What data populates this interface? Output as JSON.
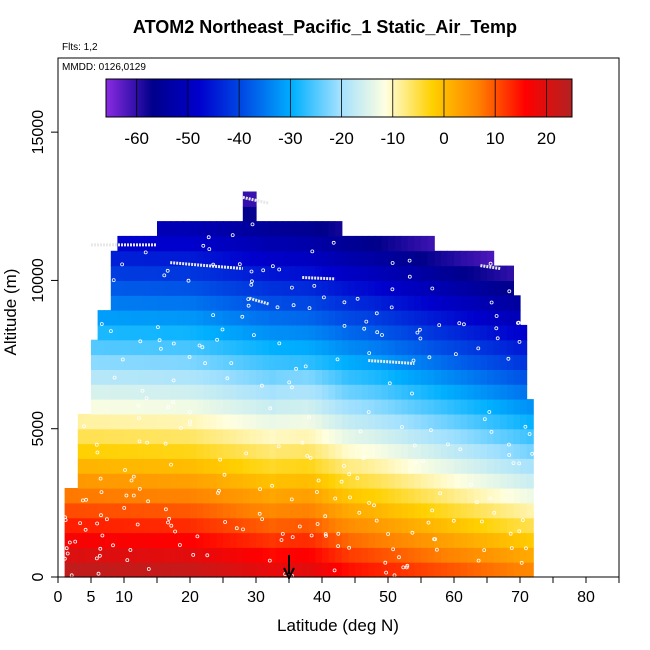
{
  "title": "ATOM2 Northeast_Pacific_1 Static_Air_Temp",
  "notes": {
    "flights": "Flts: 1,2",
    "mmdd": "MMDD: 0126,0129"
  },
  "chart_data": {
    "type": "heatmap",
    "title": "ATOM2 Northeast_Pacific_1 Static_Air_Temp",
    "xlabel": "Latitude (deg N)",
    "ylabel": "Altitude (m)",
    "xlim": [
      0,
      85
    ],
    "ylim": [
      0,
      17500
    ],
    "x_ticks": [
      0,
      5,
      10,
      20,
      30,
      40,
      50,
      60,
      70,
      80
    ],
    "y_ticks": [
      0,
      5000,
      10000,
      15000
    ],
    "colorbar": {
      "ticks": [
        -60,
        -50,
        -40,
        -30,
        -20,
        -10,
        0,
        10,
        20
      ],
      "range": [
        -66,
        25
      ],
      "colors": [
        "#8A2BE2",
        "#00008B",
        "#0000CD",
        "#0050E6",
        "#00B0FF",
        "#A0E0FF",
        "#FFFFE0",
        "#FFD000",
        "#FF8000",
        "#FF0000",
        "#B22222"
      ]
    },
    "profile_latitudes": [
      0.5,
      1.5,
      2.5,
      3.5,
      4.5,
      5.5,
      6.5,
      7.5,
      8.5,
      9.5,
      10.5,
      11.5,
      12.5,
      13.5,
      14.5,
      15.5,
      16.5,
      17.5,
      18.5,
      19.5,
      20.5,
      21.5,
      22.5,
      23.5,
      24.5,
      25.5,
      26.5,
      27.5,
      28.5,
      29.5,
      30.5,
      31.5,
      32.5,
      33.5,
      34.5,
      35.5,
      36.5,
      37.5,
      38.5,
      39.5,
      40.5,
      41.5,
      42.5,
      43.5,
      44.5,
      45.5,
      46.5,
      47.5,
      48.5,
      49.5,
      50.5,
      51.5,
      52.5,
      53.5,
      54.5,
      55.5,
      56.5,
      57.5,
      58.5,
      59.5,
      60.5,
      61.5,
      62.5,
      63.5,
      64.5,
      65.5,
      66.5,
      67.5,
      68.5,
      69.5,
      70.5,
      71.5
    ],
    "profile_top_altitude": [
      0,
      2800,
      2800,
      5400,
      5400,
      7800,
      9000,
      9000,
      10800,
      11300,
      11300,
      11300,
      11300,
      11300,
      11300,
      12000,
      12000,
      12000,
      12000,
      12000,
      12000,
      12000,
      12000,
      12000,
      12000,
      12000,
      12000,
      12000,
      13000,
      13000,
      12000,
      12000,
      12000,
      12000,
      12000,
      12000,
      12000,
      12000,
      12000,
      12000,
      12000,
      12000,
      12000,
      11500,
      11500,
      11500,
      11500,
      11500,
      11500,
      11500,
      11500,
      11500,
      11500,
      11500,
      11500,
      11500,
      11500,
      11000,
      11000,
      11000,
      11000,
      11000,
      11000,
      11000,
      11000,
      11000,
      10500,
      10500,
      10500,
      9500,
      8500,
      5700
    ],
    "segments": [
      {
        "lat": [
          28,
          32
        ],
        "alt": [
          12800,
          12600
        ]
      },
      {
        "lat": [
          5,
          15
        ],
        "alt": [
          11200,
          11200
        ]
      },
      {
        "lat": [
          17,
          28
        ],
        "alt": [
          10600,
          10400
        ]
      },
      {
        "lat": [
          29,
          32
        ],
        "alt": [
          9400,
          9200
        ]
      },
      {
        "lat": [
          37,
          42
        ],
        "alt": [
          10100,
          10050
        ]
      },
      {
        "lat": [
          64,
          67
        ],
        "alt": [
          10500,
          10400
        ]
      },
      {
        "lat": [
          47,
          54
        ],
        "alt": [
          7300,
          7200
        ]
      }
    ],
    "arrow_latitude": 35
  }
}
